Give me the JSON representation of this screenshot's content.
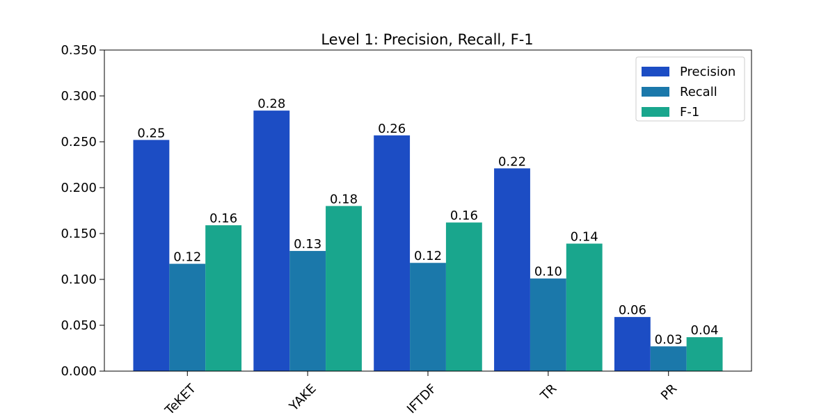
{
  "chart_data": {
    "type": "bar",
    "title": "Level 1: Precision, Recall, F-1",
    "xlabel": "",
    "ylabel": "",
    "categories": [
      "TeKET",
      "YAKE",
      "IFTDF",
      "TR",
      "PR"
    ],
    "series": [
      {
        "name": "Precision",
        "color": "#1c4dc4",
        "values": [
          0.252,
          0.284,
          0.257,
          0.221,
          0.059
        ],
        "labels": [
          "0.25",
          "0.28",
          "0.26",
          "0.22",
          "0.06"
        ]
      },
      {
        "name": "Recall",
        "color": "#1b78aa",
        "values": [
          0.117,
          0.131,
          0.118,
          0.101,
          0.027
        ],
        "labels": [
          "0.12",
          "0.13",
          "0.12",
          "0.10",
          "0.03"
        ]
      },
      {
        "name": "F-1",
        "color": "#19a68d",
        "values": [
          0.159,
          0.18,
          0.162,
          0.139,
          0.037
        ],
        "labels": [
          "0.16",
          "0.18",
          "0.16",
          "0.14",
          "0.04"
        ]
      }
    ],
    "ylim": [
      0,
      0.35
    ],
    "yticks": [
      0,
      0.05,
      0.1,
      0.15,
      0.2,
      0.25,
      0.3,
      0.35
    ],
    "ytick_labels": [
      "0.000",
      "0.050",
      "0.100",
      "0.150",
      "0.200",
      "0.250",
      "0.300",
      "0.350"
    ],
    "grid": false,
    "legend_position": "top-right",
    "xtick_rotation_deg": 45
  }
}
